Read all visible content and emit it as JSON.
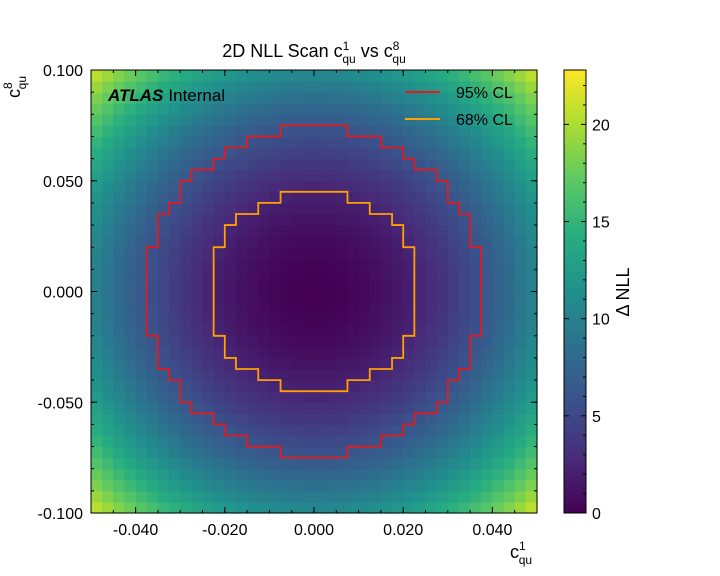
{
  "chart_data": {
    "type": "heatmap",
    "title": "2D NLL Scan",
    "title_sym1": "c",
    "title_sym1_sup": "1",
    "title_sym1_sub": "qu",
    "title_vs": "vs",
    "title_sym2": "c",
    "title_sym2_sup": "8",
    "title_sym2_sub": "qu",
    "xlabel": "c",
    "xlabel_sup": "1",
    "xlabel_sub": "qu",
    "ylabel": "c",
    "ylabel_sup": "8",
    "ylabel_sub": "qu",
    "xlim": [
      -0.05,
      0.05
    ],
    "ylim": [
      -0.1,
      0.1
    ],
    "x_ticks": [
      -0.04,
      -0.02,
      0.0,
      0.02,
      0.04
    ],
    "x_tick_labels": [
      "-0.040",
      "-0.020",
      "0.000",
      "0.020",
      "0.040"
    ],
    "y_ticks": [
      -0.1,
      -0.05,
      0.0,
      0.05,
      0.1
    ],
    "y_tick_labels": [
      "-0.100",
      "-0.050",
      "0.000",
      "0.050",
      "0.100"
    ],
    "grid": false,
    "nbins_x": 40,
    "nbins_y": 40,
    "z_label": "Δ NLL",
    "zlim": [
      0,
      22.8
    ],
    "z_ticks": [
      0,
      5,
      10,
      15,
      20
    ],
    "z_tick_labels": [
      "0",
      "5",
      "10",
      "15",
      "20"
    ],
    "colormap": "viridis",
    "nll_model": "ΔNLL = (x/0.0155)^2 + (y/0.0301)^2",
    "contour_levels": [
      {
        "name": "95% CL",
        "level": 5.99,
        "color": "#e41a1c"
      },
      {
        "name": "68% CL",
        "level": 2.3,
        "color": "#ff9f00"
      }
    ],
    "legend_position": "top-right",
    "label_bold": "ATLAS",
    "label_text": "Internal"
  }
}
